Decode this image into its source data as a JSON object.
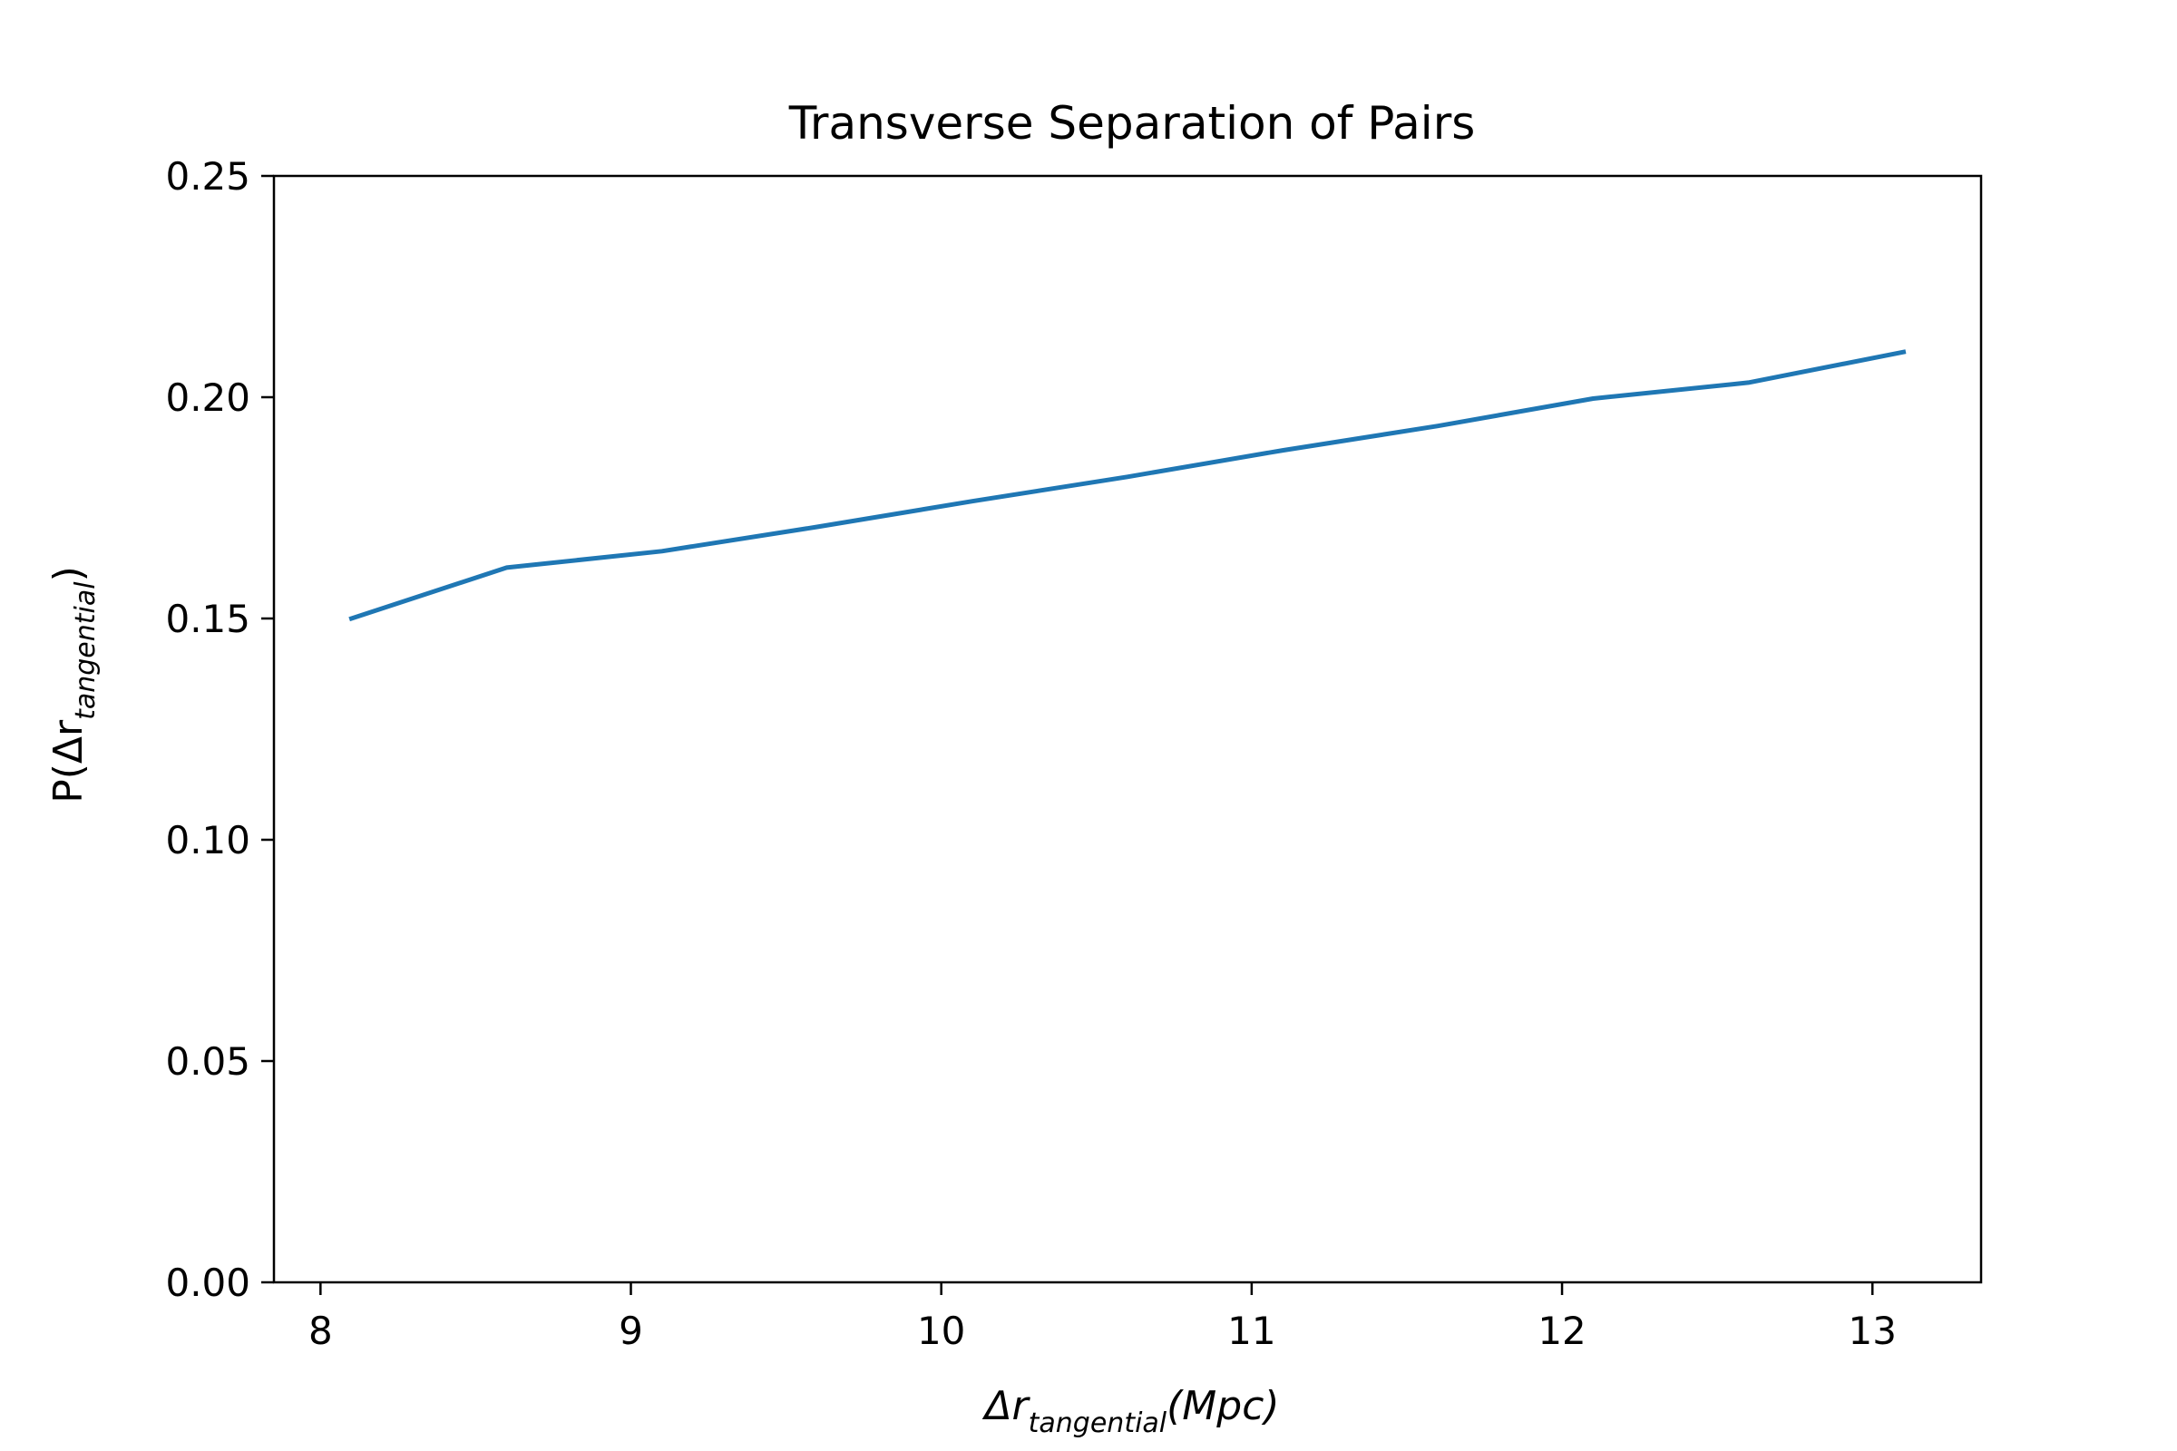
{
  "chart_data": {
    "type": "line",
    "title": "Transverse Separation of Pairs",
    "xlabel": {
      "main": "Δr",
      "sub": "tangential",
      "rest": "(Mpc)"
    },
    "ylabel": {
      "main": "P(Δr",
      "sub": "tangential",
      "rest": ")"
    },
    "xlim": [
      7.85,
      13.35
    ],
    "ylim": [
      0,
      0.25
    ],
    "xticks": [
      8,
      9,
      10,
      11,
      12,
      13
    ],
    "xtick_labels": [
      "8",
      "9",
      "10",
      "11",
      "12",
      "13"
    ],
    "yticks": [
      0,
      0.05,
      0.1,
      0.15,
      0.2,
      0.25
    ],
    "ytick_labels": [
      "0.00",
      "0.05",
      "0.10",
      "0.15",
      "0.20",
      "0.25"
    ],
    "grid": false,
    "series": [
      {
        "color": "#1f77b4",
        "x": [
          8.1,
          8.6,
          9.1,
          9.6,
          10.1,
          10.6,
          11.1,
          11.6,
          12.1,
          12.6,
          13.1
        ],
        "y": [
          0.15,
          0.1615,
          0.1652,
          0.1707,
          0.1765,
          0.182,
          0.188,
          0.1935,
          0.1997,
          0.2033,
          0.2102
        ]
      }
    ]
  }
}
